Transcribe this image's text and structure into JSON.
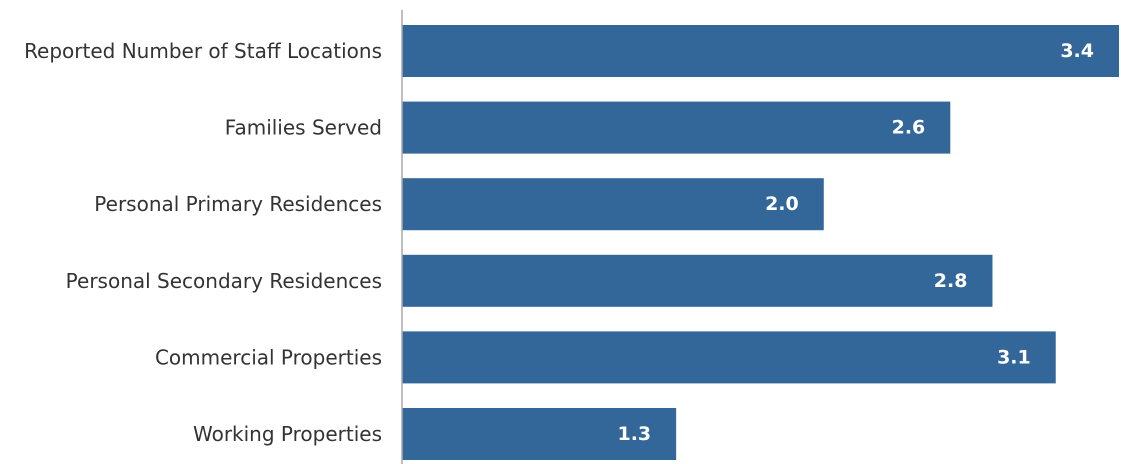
{
  "chart_data": {
    "type": "bar",
    "orientation": "horizontal",
    "categories": [
      "Reported Number of Staff Locations",
      "Families Served",
      "Personal Primary Residences",
      "Personal Secondary Residences",
      "Commercial Properties",
      "Working Properties"
    ],
    "values": [
      3.4,
      2.6,
      2.0,
      2.8,
      3.1,
      1.3
    ],
    "value_labels": [
      "3.4",
      "2.6",
      "2.0",
      "2.8",
      "3.1",
      "1.3"
    ],
    "xlim": [
      0,
      3.4
    ],
    "grid": false,
    "legend": "none",
    "bar_color": "#336699",
    "value_label_color": "#ffffff",
    "category_label_color": "#333333",
    "axis_color": "#aaaaaa"
  }
}
